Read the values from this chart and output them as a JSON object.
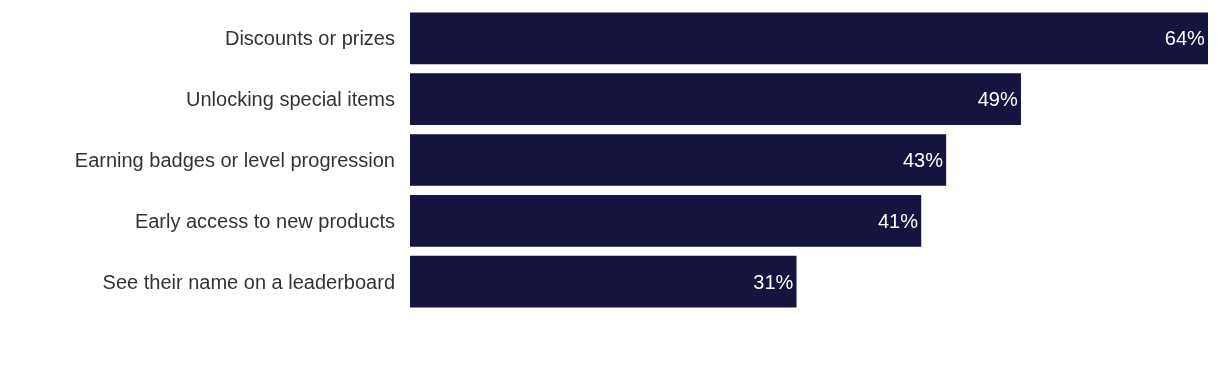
{
  "chart_data": {
    "type": "bar",
    "orientation": "horizontal",
    "categories": [
      "Discounts or prizes",
      "Unlocking special items",
      "Earning badges or level progression",
      "Early access to new products",
      "See their name on a leaderboard"
    ],
    "values": [
      64,
      49,
      43,
      41,
      31
    ],
    "value_labels": [
      "64%",
      "49%",
      "43%",
      "41%",
      "31%"
    ],
    "color": "#15133f"
  }
}
